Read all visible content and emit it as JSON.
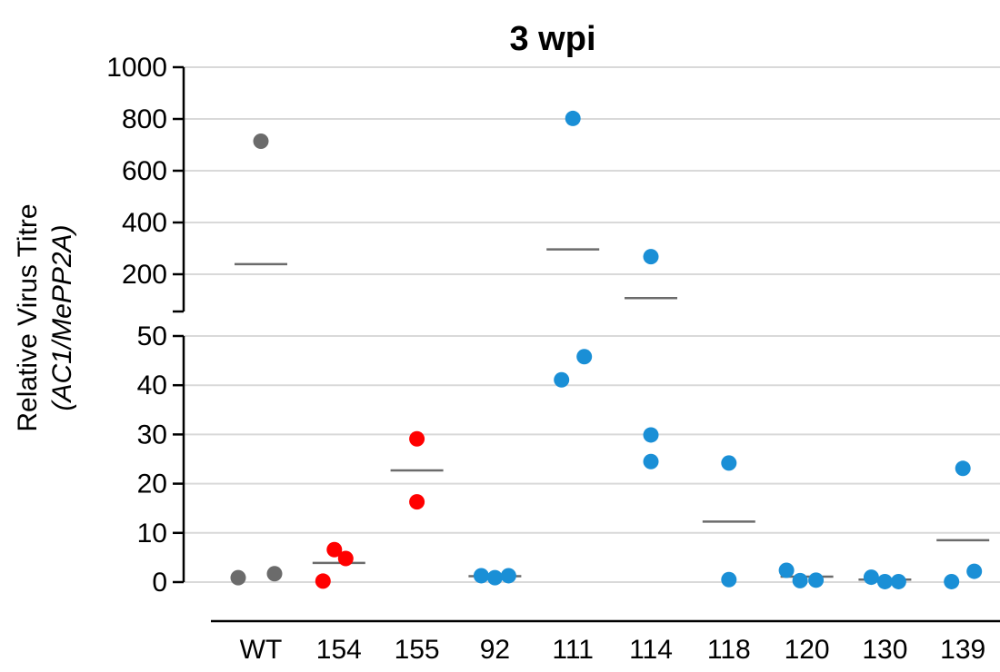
{
  "chart_data": {
    "type": "scatter",
    "title": "3 wpi",
    "ylabel": "Relative Virus Titre",
    "ylabel_sub": "(AC1/MePP2A)",
    "xlabel": "",
    "categories": [
      "WT",
      "154",
      "155",
      "92",
      "111",
      "114",
      "118",
      "120",
      "130",
      "139"
    ],
    "y_axis_break": true,
    "upper_panel": {
      "ylim": [
        0,
        1000
      ],
      "ticks": [
        1000,
        800,
        600,
        400,
        200
      ]
    },
    "lower_panel": {
      "ylim": [
        0,
        50
      ],
      "ticks": [
        50,
        40,
        30,
        20,
        10,
        0
      ]
    },
    "grid": true,
    "colors": {
      "WT": "#6b6b6b",
      "154": "#ff0000",
      "155": "#ff0000",
      "other": "#1a8fd6",
      "mean_line": "#6b6b6b",
      "grid": "#d9d9d9"
    },
    "groups": [
      {
        "name": "WT",
        "color": "#6b6b6b",
        "mean": 239,
        "points": [
          {
            "y": 714,
            "dx": 0
          },
          {
            "y": 0.9,
            "dx": -0.5
          },
          {
            "y": 1.7,
            "dx": 0.3
          }
        ]
      },
      {
        "name": "154",
        "color": "#ff0000",
        "mean": 3.9,
        "points": [
          {
            "y": 6.6,
            "dx": -0.1
          },
          {
            "y": 4.8,
            "dx": 0.15
          },
          {
            "y": 0.2,
            "dx": -0.35
          }
        ]
      },
      {
        "name": "155",
        "color": "#ff0000",
        "mean": 22.7,
        "points": [
          {
            "y": 29.1,
            "dx": 0
          },
          {
            "y": 16.3,
            "dx": 0
          }
        ]
      },
      {
        "name": "92",
        "color": "#1a8fd6",
        "mean": 1.2,
        "points": [
          {
            "y": 1.3,
            "dx": -0.3
          },
          {
            "y": 0.9,
            "dx": 0
          },
          {
            "y": 1.3,
            "dx": 0.3
          }
        ]
      },
      {
        "name": "111",
        "color": "#1a8fd6",
        "mean": 296,
        "points": [
          {
            "y": 802,
            "dx": 0
          },
          {
            "y": 45.8,
            "dx": 0.25
          },
          {
            "y": 41.1,
            "dx": -0.25
          }
        ]
      },
      {
        "name": "114",
        "color": "#1a8fd6",
        "mean": 108,
        "points": [
          {
            "y": 268,
            "dx": 0
          },
          {
            "y": 29.9,
            "dx": 0
          },
          {
            "y": 24.5,
            "dx": 0
          }
        ]
      },
      {
        "name": "118",
        "color": "#1a8fd6",
        "mean": 12.3,
        "points": [
          {
            "y": 24.2,
            "dx": 0
          },
          {
            "y": 0.5,
            "dx": 0
          }
        ]
      },
      {
        "name": "120",
        "color": "#1a8fd6",
        "mean": 1.1,
        "points": [
          {
            "y": 2.4,
            "dx": -0.45
          },
          {
            "y": 0.3,
            "dx": -0.15
          },
          {
            "y": 0.4,
            "dx": 0.2
          }
        ]
      },
      {
        "name": "130",
        "color": "#1a8fd6",
        "mean": 0.5,
        "points": [
          {
            "y": 1.0,
            "dx": -0.3
          },
          {
            "y": 0.1,
            "dx": 0
          },
          {
            "y": 0.1,
            "dx": 0.3
          }
        ]
      },
      {
        "name": "139",
        "color": "#1a8fd6",
        "mean": 8.5,
        "points": [
          {
            "y": 23.1,
            "dx": 0
          },
          {
            "y": 2.2,
            "dx": 0.25
          },
          {
            "y": 0.1,
            "dx": -0.25
          }
        ]
      }
    ]
  }
}
